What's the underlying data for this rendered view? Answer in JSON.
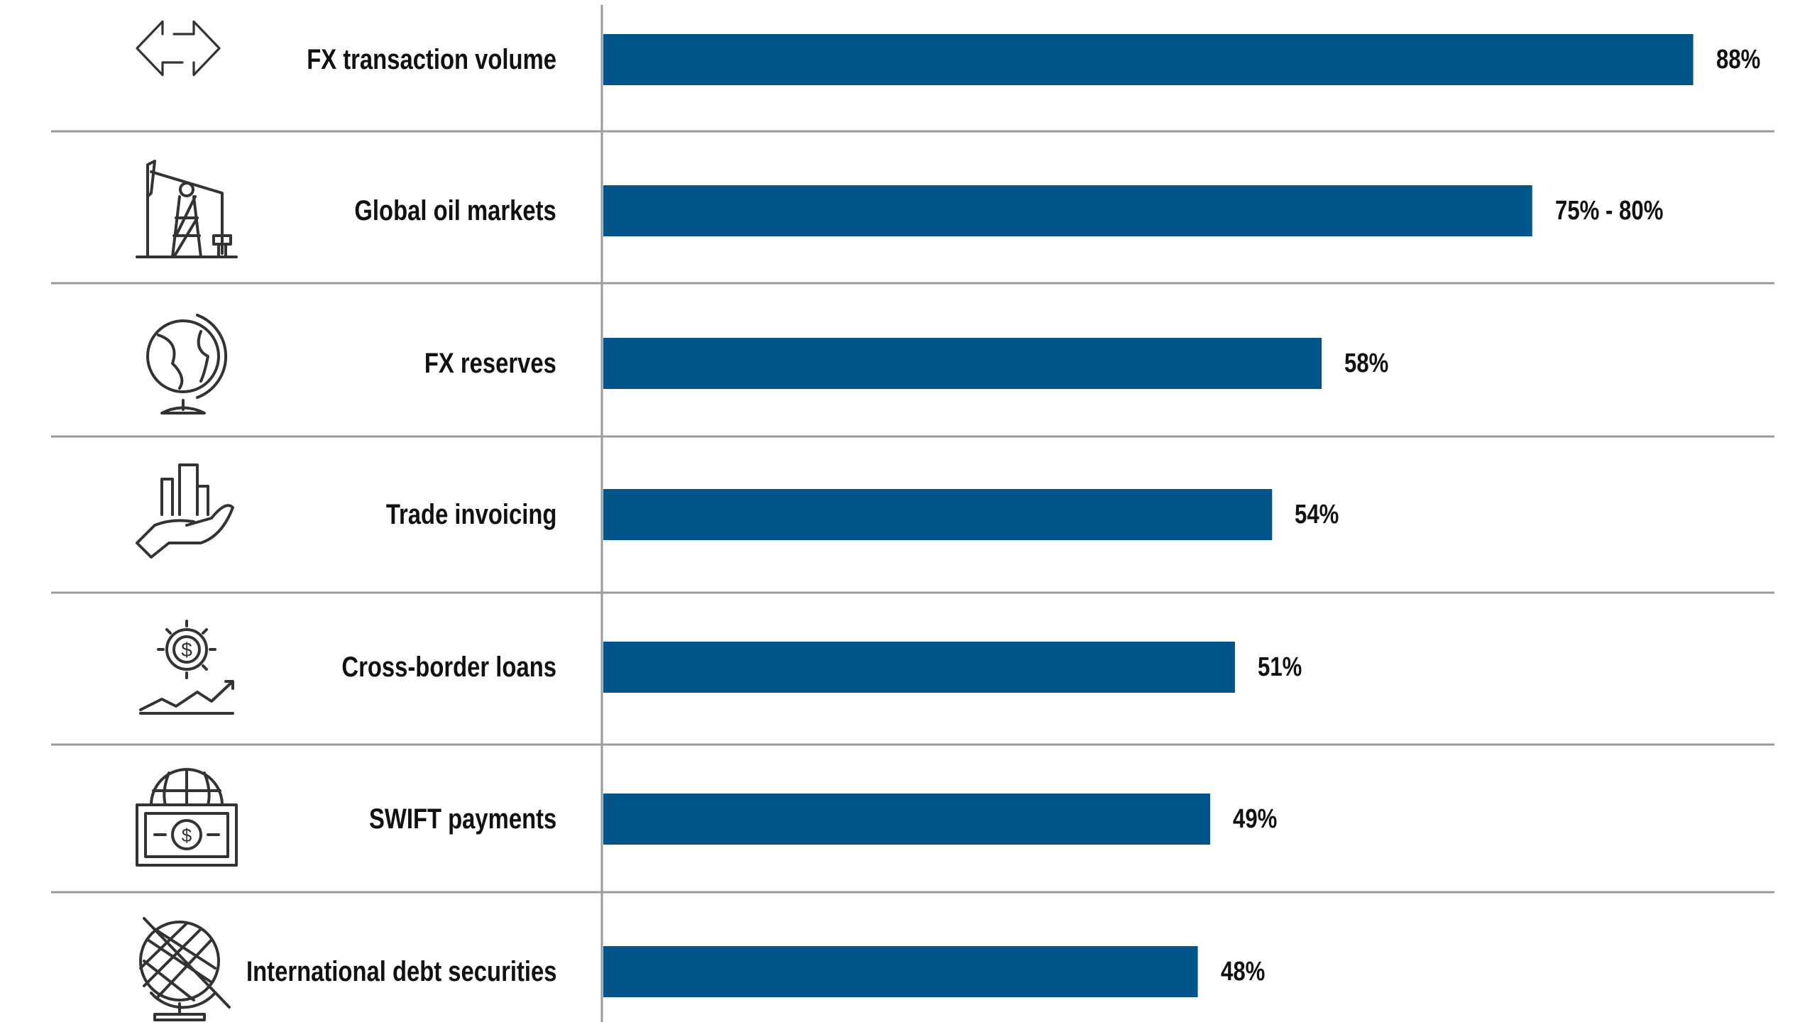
{
  "chart_data": {
    "type": "bar",
    "orientation": "horizontal",
    "categories": [
      "FX transaction volume",
      "Global oil markets",
      "FX reserves",
      "Trade invoicing",
      "Cross-border loans",
      "SWIFT payments",
      "International debt securities"
    ],
    "values": [
      88,
      75,
      58,
      54,
      51,
      49,
      48
    ],
    "value_labels": [
      "88%",
      "75% - 80%",
      "58%",
      "54%",
      "51%",
      "49%",
      "48%"
    ],
    "icons": [
      "exchange-arrows-icon",
      "oil-pump-icon",
      "globe-icon",
      "hand-chart-icon",
      "gear-dollar-growth-icon",
      "globe-banknote-icon",
      "globe-stand-icon"
    ],
    "xlim": [
      0,
      100
    ],
    "grid": false,
    "legend": "none",
    "bar_color": "#00558A",
    "title": "",
    "xlabel": "",
    "ylabel": ""
  }
}
